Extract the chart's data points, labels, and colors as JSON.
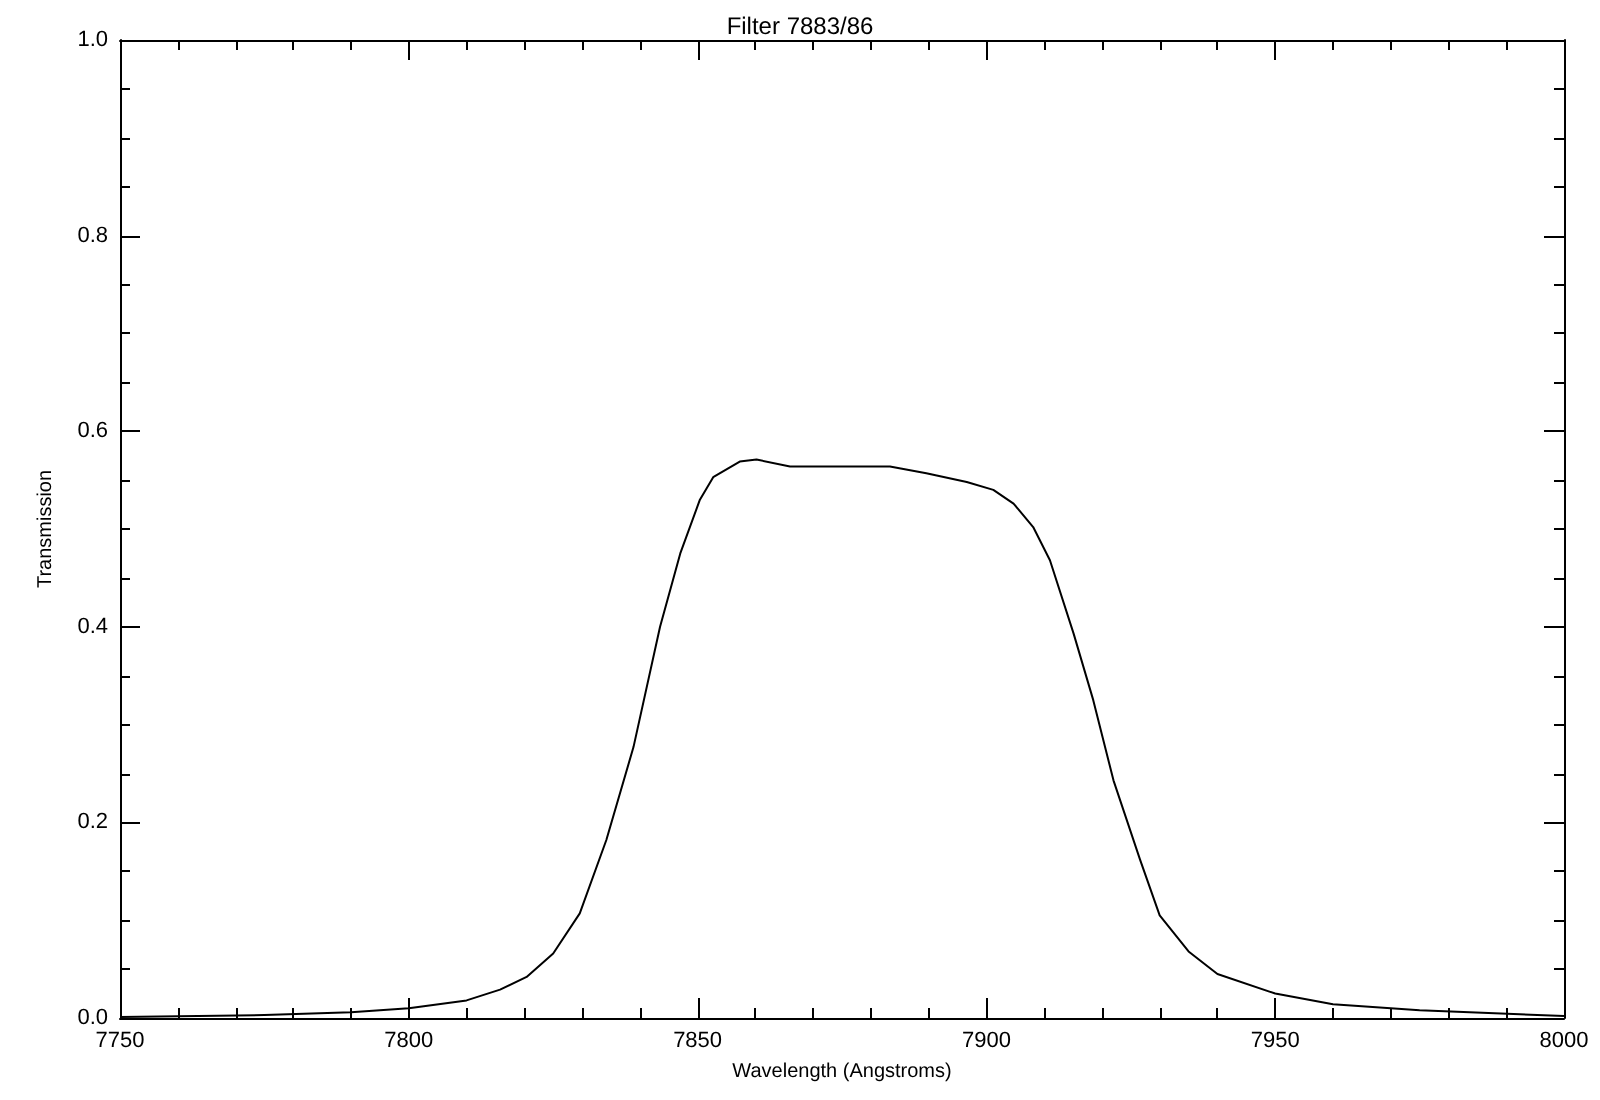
{
  "chart_data": {
    "type": "line",
    "title": "Filter 7883/86",
    "xlabel": "Wavelength (Angstroms)",
    "ylabel": "Transmission",
    "xlim": [
      7750,
      8000
    ],
    "xticks": [
      7750,
      7800,
      7850,
      7900,
      7950,
      8000
    ],
    "ylim": [
      0,
      1
    ],
    "yticks": [
      {
        "value": 0,
        "label": "0.0"
      },
      {
        "value": 0.2,
        "label": "0.2"
      },
      {
        "value": 0.4,
        "label": "0.4"
      },
      {
        "value": 0.6,
        "label": "0.6"
      },
      {
        "value": 0.8,
        "label": "0.8"
      },
      {
        "value": 1,
        "label": "1.0"
      }
    ],
    "grid": false,
    "marker": "none",
    "line_style": "solid",
    "series": [
      {
        "color": "#000000",
        "x": [
          7750,
          7775,
          7790,
          7800,
          7810,
          7815.8,
          7820.4,
          7825.0,
          7829.6,
          7834.2,
          7838.9,
          7843.5,
          7847.0,
          7850.4,
          7852.7,
          7857.3,
          7860.2,
          7866.0,
          7883.3,
          7889.6,
          7896.6,
          7901.2,
          7904.7,
          7908.1,
          7911.0,
          7915.1,
          7918.5,
          7922.0,
          7926.6,
          7930,
          7935,
          7940,
          7950,
          7960,
          7975,
          8000
        ],
        "values": [
          0.001,
          0.003,
          0.006,
          0.01,
          0.018,
          0.029,
          0.042,
          0.066,
          0.107,
          0.182,
          0.277,
          0.4,
          0.475,
          0.53,
          0.553,
          0.569,
          0.571,
          0.564,
          0.564,
          0.557,
          0.548,
          0.54,
          0.526,
          0.502,
          0.468,
          0.393,
          0.325,
          0.243,
          0.162,
          0.105,
          0.068,
          0.045,
          0.025,
          0.014,
          0.008,
          0.002
        ]
      }
    ]
  }
}
